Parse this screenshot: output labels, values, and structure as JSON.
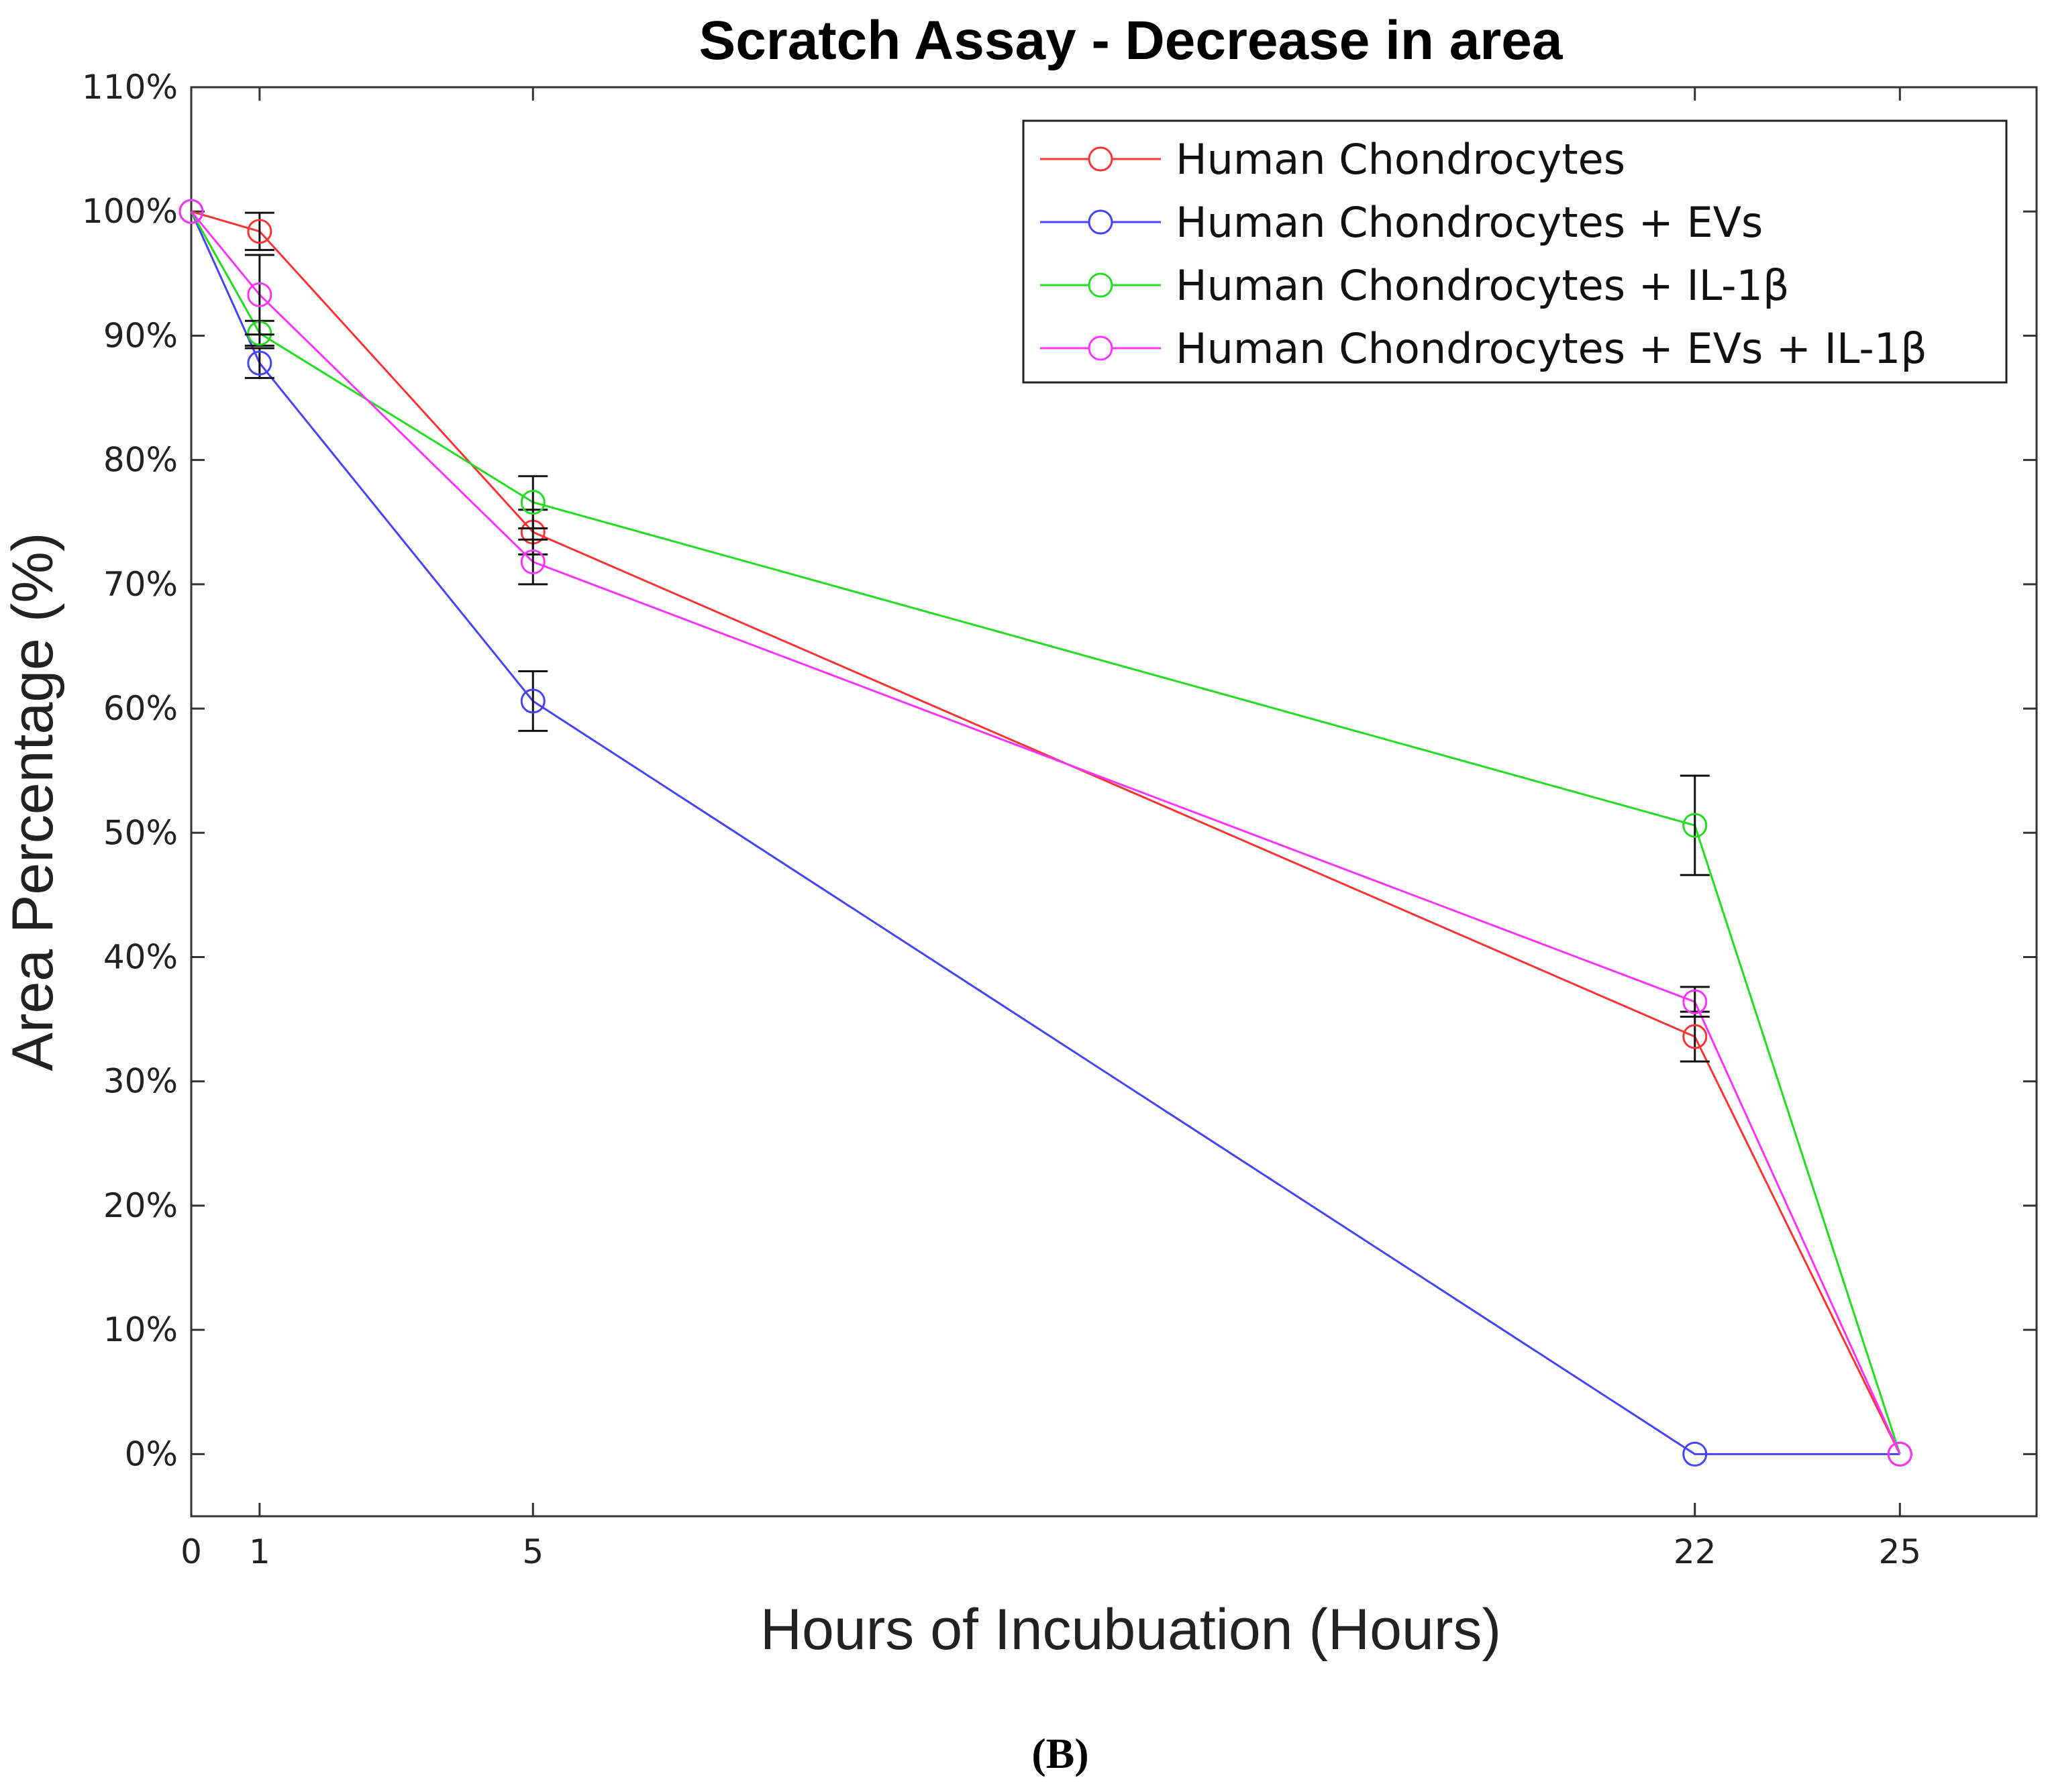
{
  "chart_data": {
    "type": "line",
    "title": "Scratch Assay - Decrease in area",
    "xlabel": "Hours of Incubuation (Hours)",
    "ylabel": "Area Percentage (%)",
    "x": [
      0,
      1,
      5,
      22,
      25
    ],
    "x_ticks": [
      "0",
      "1",
      "5",
      "22",
      "25"
    ],
    "xlim": [
      0,
      27
    ],
    "ylim": [
      -5,
      110
    ],
    "y_ticks": [
      "0%",
      "10%",
      "20%",
      "30%",
      "40%",
      "50%",
      "60%",
      "70%",
      "80%",
      "90%",
      "100%",
      "110%"
    ],
    "y_tick_values": [
      0,
      10,
      20,
      30,
      40,
      50,
      60,
      70,
      80,
      90,
      100,
      110
    ],
    "grid": false,
    "legend_position": "top-right",
    "marker": "circle",
    "series": [
      {
        "name": "Human Chondrocytes",
        "color": "#ff3333",
        "values": [
          100,
          98.4,
          74.2,
          33.6,
          0
        ],
        "error": [
          0,
          1.5,
          1.8,
          2.0,
          0
        ]
      },
      {
        "name": "Human Chondrocytes + EVs",
        "color": "#4444ff",
        "values": [
          100,
          87.8,
          60.6,
          0,
          0
        ],
        "error": [
          0,
          1.2,
          2.4,
          0,
          0
        ]
      },
      {
        "name": "Human Chondrocytes + IL-1β",
        "color": "#22dd22",
        "values": [
          100,
          90.2,
          76.6,
          50.6,
          0
        ],
        "error": [
          0,
          1.0,
          2.1,
          4.0,
          0
        ]
      },
      {
        "name": "Human Chondrocytes + EVs + IL-1β",
        "color": "#ff33ff",
        "values": [
          100,
          93.3,
          71.8,
          36.4,
          0
        ],
        "error": [
          0,
          3.2,
          1.8,
          1.2,
          0
        ]
      }
    ]
  },
  "caption": "(B)"
}
